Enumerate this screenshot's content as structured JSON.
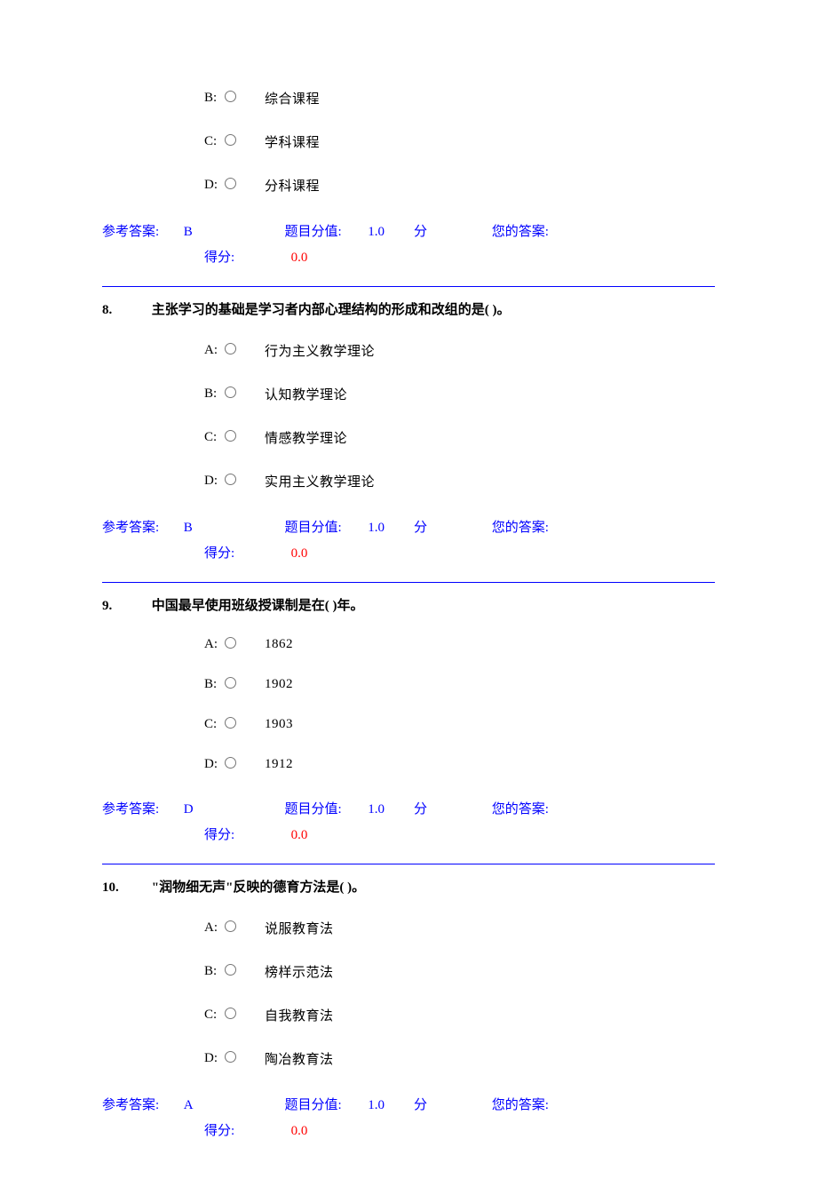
{
  "colors": {
    "text": "#000000",
    "blue": "#0000ff",
    "red": "#ff0000",
    "background": "#ffffff",
    "divider": "#0000ff"
  },
  "labels": {
    "ref_answer": "参考答案:",
    "points_label": "题目分值:",
    "points_unit": "分",
    "your_answer": "您的答案:",
    "score_label": "得分:"
  },
  "partial": {
    "options": [
      {
        "letter": "B:",
        "text": "综合课程"
      },
      {
        "letter": "C:",
        "text": "学科课程"
      },
      {
        "letter": "D:",
        "text": "分科课程"
      }
    ],
    "ref_answer": "B",
    "points": "1.0",
    "your_answer": "",
    "score": "0.0"
  },
  "questions": [
    {
      "number": "8.",
      "stem": "主张学习的基础是学习者内部心理结构的形成和改组的是( )。",
      "options": [
        {
          "letter": "A:",
          "text": "行为主义教学理论"
        },
        {
          "letter": "B:",
          "text": "认知教学理论"
        },
        {
          "letter": "C:",
          "text": "情感教学理论"
        },
        {
          "letter": "D:",
          "text": "实用主义教学理论"
        }
      ],
      "ref_answer": "B",
      "points": "1.0",
      "your_answer": "",
      "score": "0.0"
    },
    {
      "number": "9.",
      "stem": "中国最早使用班级授课制是在( )年。",
      "options": [
        {
          "letter": "A:",
          "text": "1862"
        },
        {
          "letter": "B:",
          "text": "1902"
        },
        {
          "letter": "C:",
          "text": "1903"
        },
        {
          "letter": "D:",
          "text": "1912"
        }
      ],
      "ref_answer": "D",
      "points": "1.0",
      "your_answer": "",
      "score": "0.0"
    },
    {
      "number": "10.",
      "stem": "\"润物细无声\"反映的德育方法是( )。",
      "options": [
        {
          "letter": "A:",
          "text": "说服教育法"
        },
        {
          "letter": "B:",
          "text": "榜样示范法"
        },
        {
          "letter": "C:",
          "text": "自我教育法"
        },
        {
          "letter": "D:",
          "text": "陶冶教育法"
        }
      ],
      "ref_answer": "A",
      "points": "1.0",
      "your_answer": "",
      "score": "0.0"
    }
  ]
}
